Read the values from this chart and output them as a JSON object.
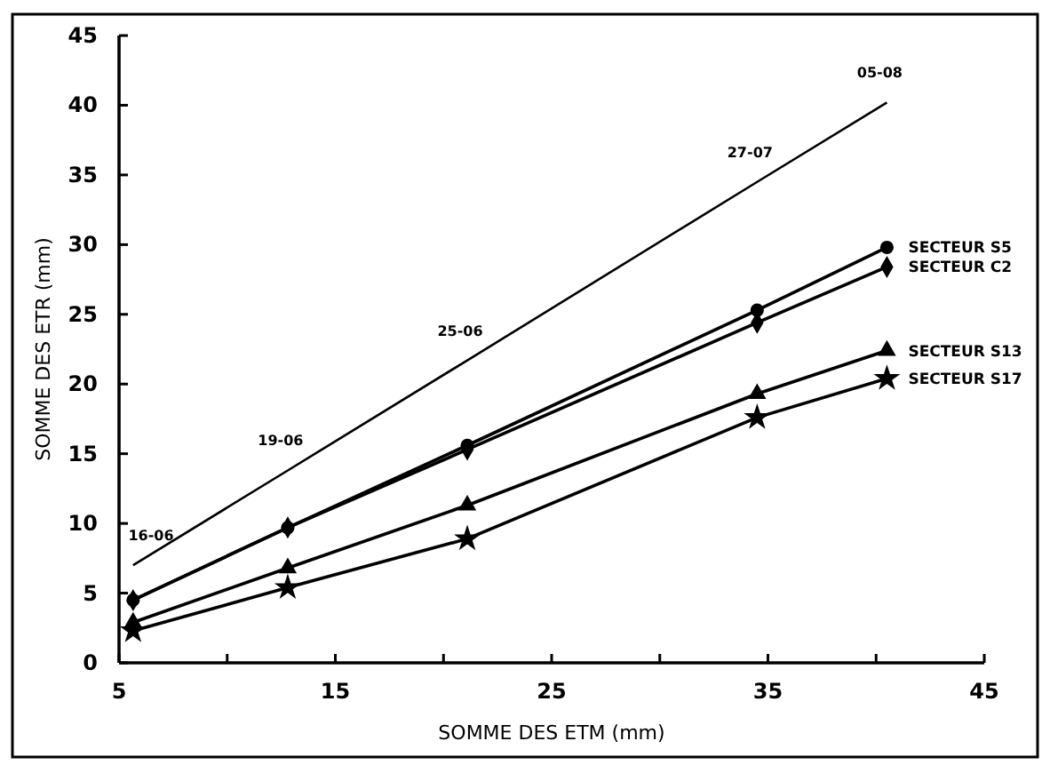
{
  "chart_data": {
    "type": "line",
    "xlabel": "SOMME DES ETM (mm)",
    "ylabel": "SOMME DES ETR (mm)",
    "x": [
      5.65,
      12.8,
      21.1,
      34.5,
      40.5
    ],
    "series": [
      {
        "values": [
          7.0,
          13.8,
          21.7,
          34.5,
          40.2
        ],
        "color": "#000000",
        "marker": "none"
      },
      {
        "name": "SECTEUR S5",
        "values": [
          4.5,
          9.7,
          15.6,
          25.3,
          29.8
        ],
        "color": "#000000",
        "marker": "circle"
      },
      {
        "name": "SECTEUR C2",
        "values": [
          4.5,
          9.7,
          15.3,
          24.4,
          28.4
        ],
        "color": "#000000",
        "marker": "diamond"
      },
      {
        "name": "SECTEUR S13",
        "values": [
          2.9,
          6.8,
          11.3,
          19.3,
          22.4
        ],
        "color": "#000000",
        "marker": "triangle"
      },
      {
        "name": "SECTEUR S17",
        "values": [
          2.3,
          5.4,
          8.9,
          17.6,
          20.4
        ],
        "color": "#000000",
        "marker": "star"
      }
    ],
    "annotations": [
      {
        "text": "16-06",
        "x": 5.65,
        "y": 7.0
      },
      {
        "text": "19-06",
        "x": 12.8,
        "y": 13.8
      },
      {
        "text": "25-06",
        "x": 21.1,
        "y": 21.7
      },
      {
        "text": "27-07",
        "x": 34.5,
        "y": 34.5
      },
      {
        "text": "05-08",
        "x": 40.5,
        "y": 40.2
      }
    ],
    "xlim": [
      5,
      45
    ],
    "xticks": [
      5,
      {
        "value": 10,
        "label": null
      },
      15,
      {
        "value": 20,
        "label": null
      },
      25,
      {
        "value": 30,
        "label": null
      },
      35,
      {
        "value": 40,
        "label": null
      },
      45
    ],
    "ylim": [
      0,
      45
    ],
    "yticks": [
      0,
      5,
      10,
      15,
      20,
      25,
      30,
      35,
      40,
      45
    ],
    "grid": false
  }
}
